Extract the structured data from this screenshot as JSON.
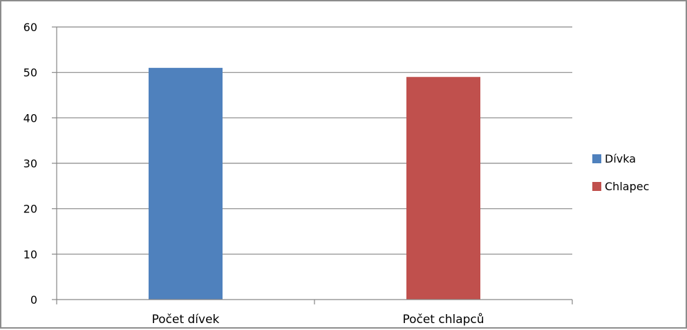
{
  "chart_data": {
    "type": "bar",
    "categories": [
      "Počet dívek",
      "Počet chlapců"
    ],
    "series": [
      {
        "name": "Dívka",
        "color": "#4f81bd",
        "values": [
          51,
          null
        ]
      },
      {
        "name": "Chlapec",
        "color": "#c0504d",
        "values": [
          null,
          49
        ]
      }
    ],
    "title": "",
    "xlabel": "",
    "ylabel": "",
    "ylim": [
      0,
      60
    ],
    "yticks": [
      0,
      10,
      20,
      30,
      40,
      50,
      60
    ],
    "grid": true,
    "legend_position": "right"
  }
}
